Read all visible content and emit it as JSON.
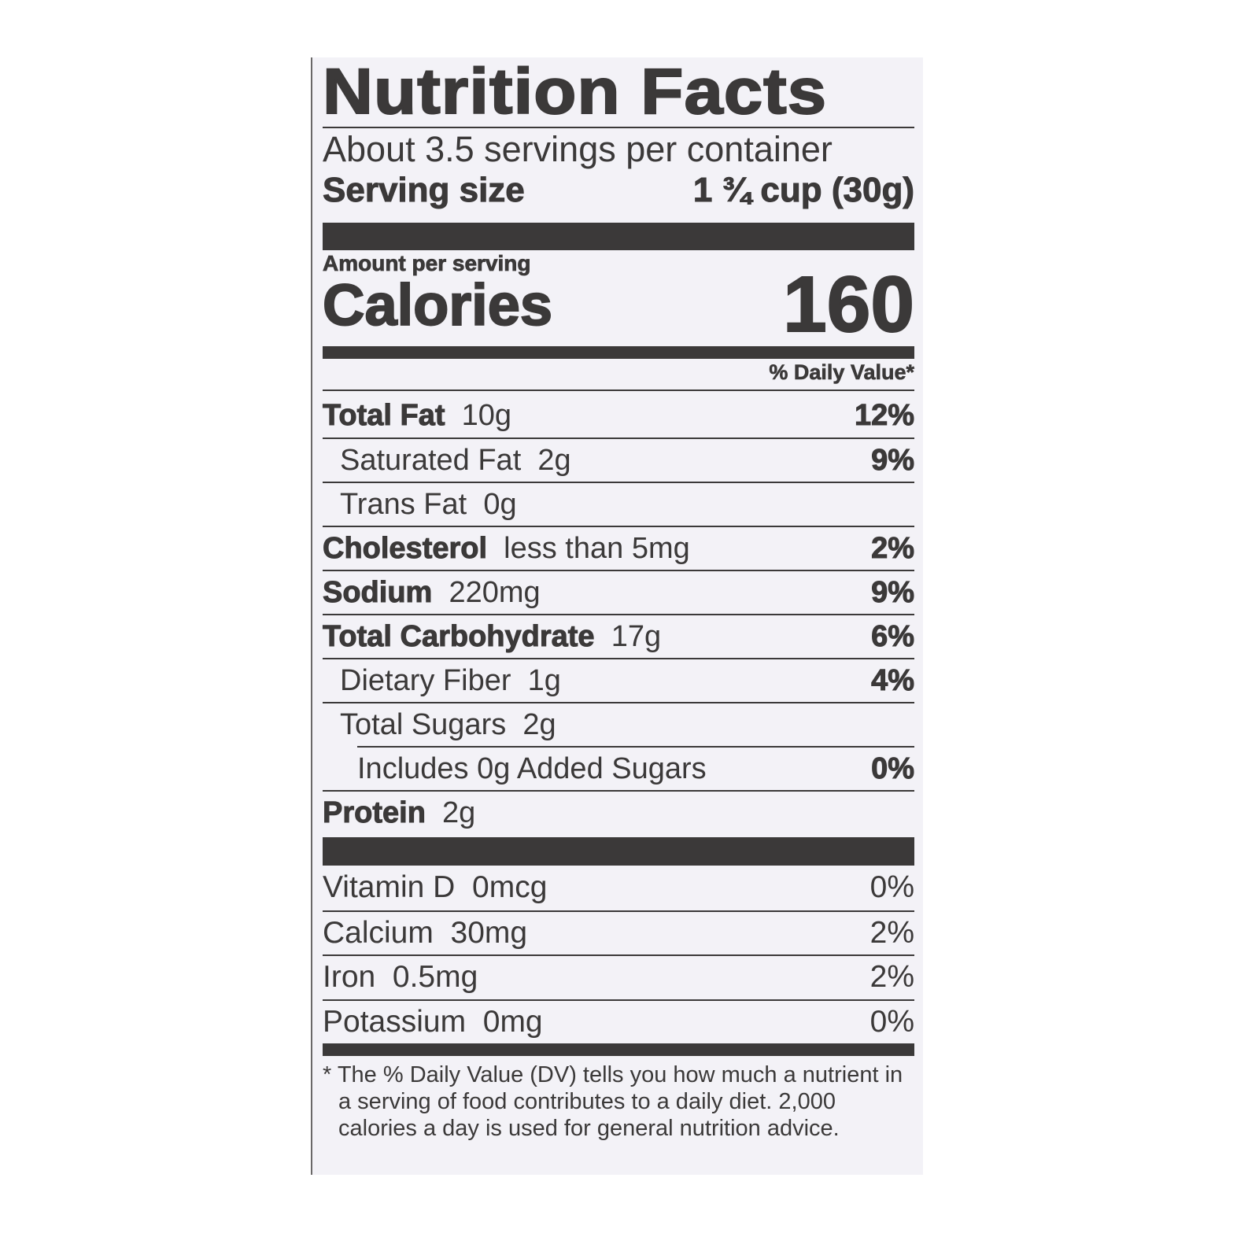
{
  "title": "Nutrition Facts",
  "servings_per_container": "About 3.5 servings per container",
  "serving_size": {
    "label": "Serving size",
    "value": "1 ¾ cup (30g)"
  },
  "amount_per_serving": "Amount per serving",
  "calories": {
    "label": "Calories",
    "value": "160"
  },
  "daily_value_header": "% Daily Value*",
  "nutrients": [
    {
      "name": "Total Fat",
      "amount": "10g",
      "dv": "12%"
    },
    {
      "name": "Saturated Fat",
      "amount": "2g",
      "dv": "9%"
    },
    {
      "name": "Trans Fat",
      "amount": "0g",
      "dv": ""
    },
    {
      "name": "Cholesterol",
      "amount": "less than 5mg",
      "dv": "2%"
    },
    {
      "name": "Sodium",
      "amount": "220mg",
      "dv": "9%"
    },
    {
      "name": "Total Carbohydrate",
      "amount": "17g",
      "dv": "6%"
    },
    {
      "name": "Dietary Fiber",
      "amount": "1g",
      "dv": "4%"
    },
    {
      "name": "Total Sugars",
      "amount": "2g",
      "dv": ""
    },
    {
      "name": "Includes 0g Added Sugars",
      "amount": "",
      "dv": "0%"
    },
    {
      "name": "Protein",
      "amount": "2g",
      "dv": ""
    }
  ],
  "vitamins": [
    {
      "name": "Vitamin D",
      "amount": "0mcg",
      "dv": "0%"
    },
    {
      "name": "Calcium",
      "amount": "30mg",
      "dv": "2%"
    },
    {
      "name": "Iron",
      "amount": "0.5mg",
      "dv": "2%"
    },
    {
      "name": "Potassium",
      "amount": "0mg",
      "dv": "0%"
    }
  ],
  "footnote": "* The % Daily Value (DV) tells you how much a nutrient in a serving of food contributes to a daily diet. 2,000 calories a day is used for general nutrition advice."
}
